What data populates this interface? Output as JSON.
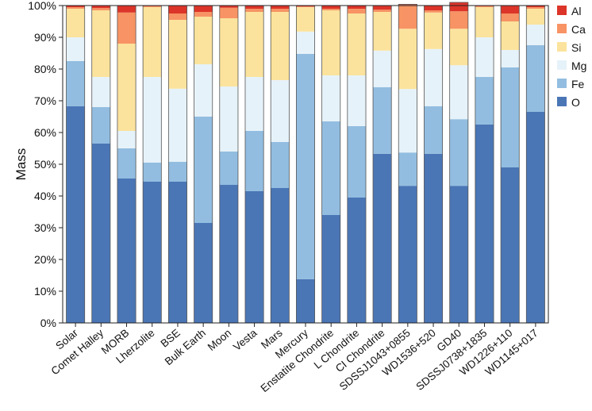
{
  "chart_data": {
    "type": "bar",
    "stacked": true,
    "title": "",
    "xlabel": "",
    "ylabel": "Mass",
    "ylim": [
      0,
      100
    ],
    "yticks": [
      "0%",
      "10%",
      "20%",
      "30%",
      "40%",
      "50%",
      "60%",
      "70%",
      "80%",
      "90%",
      "100%"
    ],
    "legend_position": "right",
    "categories": [
      "Solar",
      "Comet Halley",
      "MORB",
      "Lherzolite",
      "BSE",
      "Bulk Earth",
      "Moon",
      "Vesta",
      "Mars",
      "Mercury",
      "Enstatite Chondrite",
      "L Chondrite",
      "CI Chondrite",
      "SDSSJ1043+0855",
      "WD1536+520",
      "GD40",
      "SDSSJ0738+1835",
      "WD1226+110",
      "WD1145+017"
    ],
    "series": [
      {
        "name": "O",
        "color": "#4a76b6",
        "values": [
          68.3,
          56.5,
          45.5,
          44.5,
          44.5,
          31.5,
          43.5,
          41.5,
          42.5,
          13.8,
          34.0,
          39.5,
          53.3,
          43.2,
          53.3,
          43.2,
          62.5,
          49.0,
          66.5
        ]
      },
      {
        "name": "Fe",
        "color": "#92bde0",
        "values": [
          14.2,
          11.5,
          9.5,
          6.0,
          6.3,
          33.5,
          10.5,
          19.0,
          14.5,
          71.0,
          29.5,
          22.5,
          21.0,
          10.5,
          15.0,
          21.0,
          15.0,
          31.5,
          21.0
        ]
      },
      {
        "name": "Mg",
        "color": "#e6f2f9",
        "values": [
          7.5,
          9.5,
          5.5,
          27.0,
          23.0,
          16.5,
          20.5,
          17.0,
          19.5,
          7.0,
          14.5,
          16.0,
          11.5,
          20.0,
          18.0,
          17.0,
          12.5,
          5.5,
          6.5
        ]
      },
      {
        "name": "Si",
        "color": "#fbe39d",
        "values": [
          9.0,
          21.0,
          27.5,
          22.0,
          21.7,
          15.0,
          21.5,
          20.5,
          21.5,
          7.7,
          20.5,
          19.5,
          12.2,
          19.0,
          11.5,
          11.5,
          9.5,
          9.0,
          5.0
        ]
      },
      {
        "name": "Ca",
        "color": "#f79364",
        "values": [
          0.5,
          0.7,
          9.8,
          0.3,
          2.0,
          1.5,
          3.3,
          1.0,
          1.0,
          0.2,
          0.5,
          1.5,
          0.7,
          7.5,
          0.7,
          5.5,
          0.3,
          2.5,
          0.5
        ]
      },
      {
        "name": "Al",
        "color": "#dc3429",
        "values": [
          0.5,
          0.8,
          2.2,
          0.2,
          2.5,
          2.0,
          0.7,
          1.0,
          1.0,
          0.3,
          1.0,
          1.0,
          1.3,
          0.2,
          1.5,
          2.8,
          0.2,
          2.5,
          0.5
        ]
      }
    ]
  }
}
